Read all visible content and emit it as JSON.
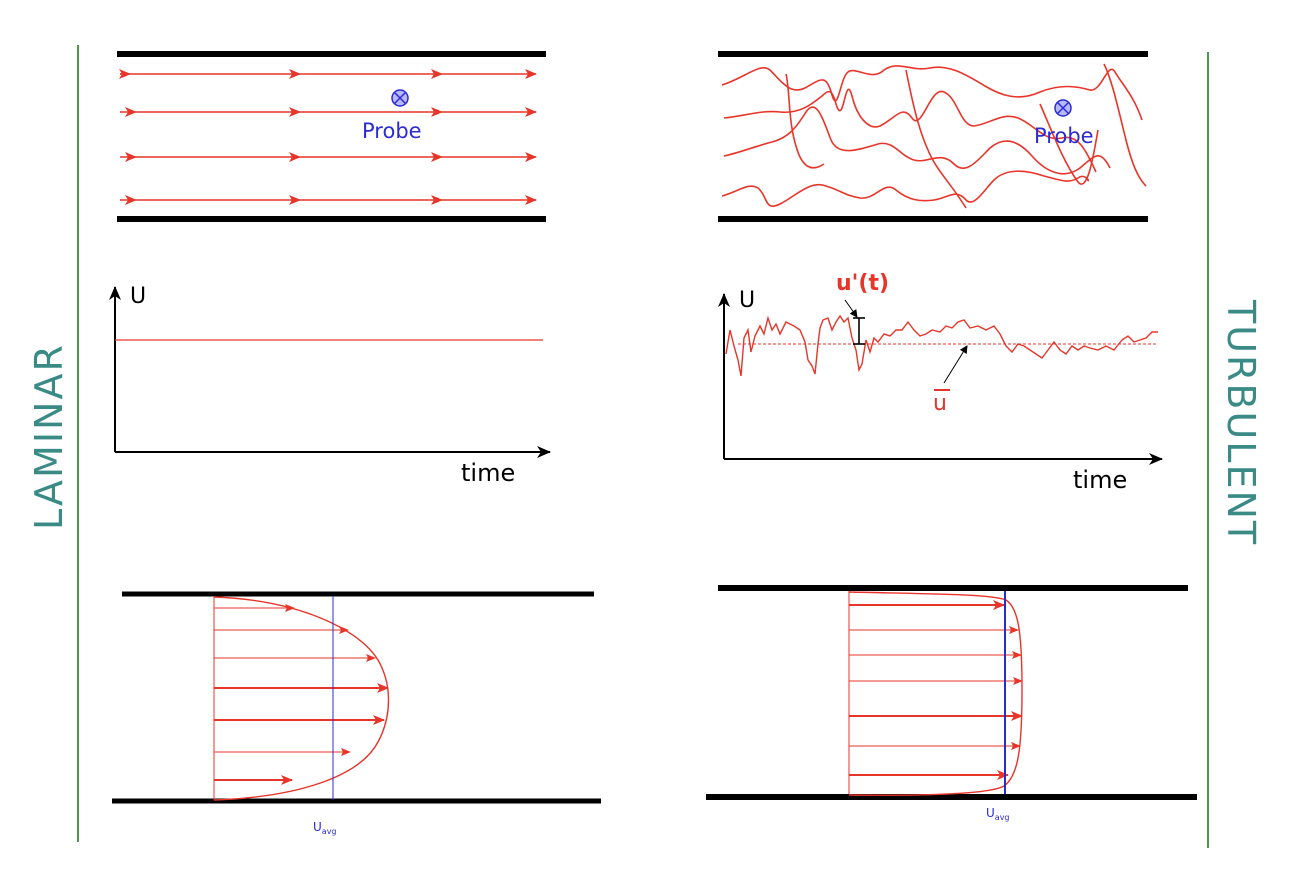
{
  "labels": {
    "laminar": "LAMINAR",
    "turbulent": "TURBULENT",
    "probe_left": "Probe",
    "probe_right": "Probe",
    "probe_symbol": "⊗",
    "axis_u_left": "U",
    "axis_u_right": "U",
    "axis_time_left": "time",
    "axis_time_right": "time",
    "fluctuation": "u'(t)",
    "mean": "u",
    "u_avg_main_left": "U",
    "u_avg_sub_left": "avg",
    "u_avg_main_right": "U",
    "u_avg_sub_right": "avg"
  },
  "colors": {
    "flow_red": "#e8352a",
    "probe_blue": "#2b2bd6",
    "label_teal": "#3a8a86",
    "divider_green": "#4a9a4a",
    "wall_black": "#000000"
  }
}
